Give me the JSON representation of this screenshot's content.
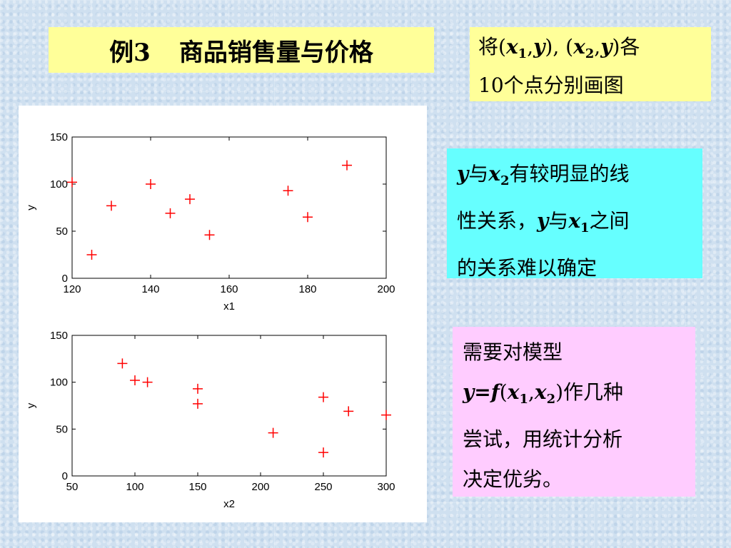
{
  "slide": {
    "title_left": "例3",
    "title_right": "商品销售量与价格"
  },
  "note": {
    "line1_prefix": "将",
    "paren_open": "(",
    "x1": "x",
    "x1_sub": "1",
    "comma": ",",
    "y": "y",
    "paren_close": ")",
    "sep": ", ",
    "x2": "x",
    "x2_sub": "2",
    "line1_suffix": "各",
    "line2": "10个点分别画图"
  },
  "conclusion": {
    "y": "y",
    "with": "与",
    "x": "x",
    "sub2": "2",
    "part1": "有较明显的线",
    "part2": "性关系，",
    "sub1": "1",
    "part3": "之间",
    "part4": "的关系难以确定"
  },
  "model_note": {
    "line1": "需要对模型",
    "y": "y",
    "eq": "=",
    "f": "f",
    "open": "(",
    "x": "x",
    "sub1": "1",
    "comma": ",",
    "sub2": "2",
    "close": ")",
    "line2_suffix": "作几种",
    "line3": "尝试，用统计分析",
    "line4": "决定优劣。"
  },
  "colors": {
    "marker": "#ff0000",
    "title_bg": "#ffff99",
    "cyan_bg": "#66ffff",
    "pink_bg": "#ffccff"
  },
  "chart_data": [
    {
      "type": "scatter",
      "marker": "+",
      "xlabel": "x1",
      "ylabel": "y",
      "xlim": [
        120,
        200
      ],
      "ylim": [
        0,
        150
      ],
      "xticks": [
        120,
        140,
        160,
        180,
        200
      ],
      "yticks": [
        0,
        50,
        100,
        150
      ],
      "x": [
        120,
        125,
        130,
        140,
        145,
        150,
        155,
        175,
        180,
        190
      ],
      "y": [
        102,
        25,
        77,
        100,
        69,
        84,
        46,
        93,
        65,
        120
      ]
    },
    {
      "type": "scatter",
      "marker": "+",
      "xlabel": "x2",
      "ylabel": "y",
      "xlim": [
        50,
        300
      ],
      "ylim": [
        0,
        150
      ],
      "xticks": [
        50,
        100,
        150,
        200,
        250,
        300
      ],
      "yticks": [
        0,
        50,
        100,
        150
      ],
      "x": [
        90,
        100,
        110,
        150,
        150,
        210,
        250,
        250,
        270,
        300
      ],
      "y": [
        120,
        102,
        100,
        93,
        77,
        46,
        84,
        25,
        69,
        65
      ]
    }
  ]
}
